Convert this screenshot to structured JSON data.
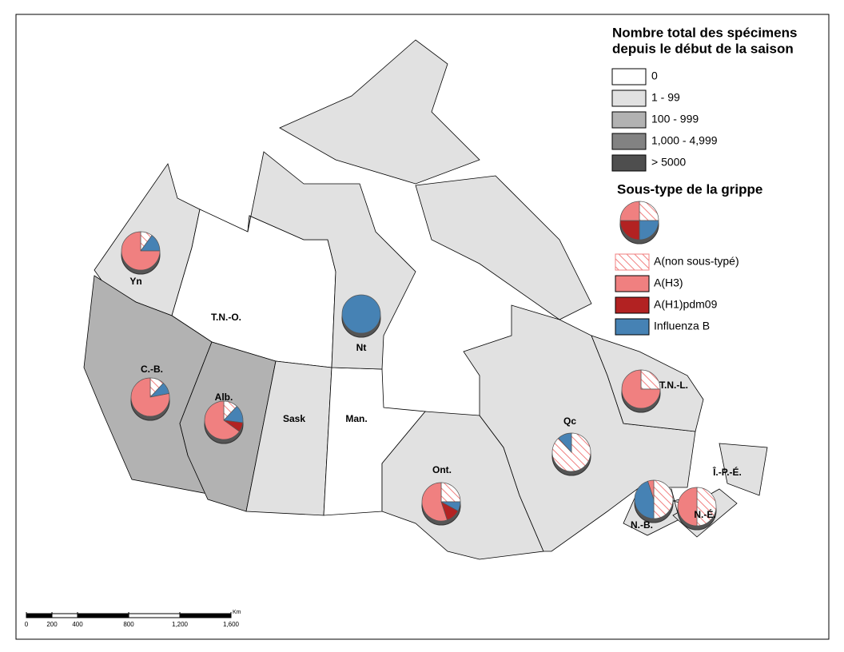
{
  "legend": {
    "title": [
      "Nombre total des spécimens",
      "depuis le début de la saison"
    ],
    "classes": [
      {
        "label": "0",
        "color": "#ffffff"
      },
      {
        "label": "1 - 99",
        "color": "#e1e1e1"
      },
      {
        "label": "100 - 999",
        "color": "#b2b2b2"
      },
      {
        "label": "1,000 - 4,999",
        "color": "#828282"
      },
      {
        "label": "> 5000",
        "color": "#4e4e4e"
      }
    ]
  },
  "subtype_legend": {
    "title": "Sous-type de la grippe",
    "items": [
      {
        "label": "A(non sous-typé)",
        "color": "#f08080",
        "hatch": true
      },
      {
        "label": "A(H3)",
        "color": "#f08080",
        "hatch": false
      },
      {
        "label": "A(H1)pdm09",
        "color": "#b22222",
        "hatch": false
      },
      {
        "label": "Influenza B",
        "color": "#4682b4",
        "hatch": false
      }
    ]
  },
  "regions": [
    {
      "label": "Yn",
      "class": 1,
      "pie": [
        10,
        75,
        0,
        15
      ]
    },
    {
      "label": "T.N.-O.",
      "class": 0
    },
    {
      "label": "C.-B.",
      "class": 2,
      "pie": [
        12,
        78,
        0,
        10
      ]
    },
    {
      "label": "Alb.",
      "class": 2,
      "pie": [
        12,
        65,
        8,
        15
      ]
    },
    {
      "label": "Sask",
      "class": 1
    },
    {
      "label": "Man.",
      "class": 0
    },
    {
      "label": "Nt",
      "class": 1,
      "pie": [
        0,
        0,
        0,
        100
      ]
    },
    {
      "label": "Ont.",
      "class": 1,
      "pie": [
        25,
        55,
        12,
        8
      ]
    },
    {
      "label": "Qc",
      "class": 1,
      "pie": [
        88,
        0,
        0,
        12
      ]
    },
    {
      "label": "T.N.-L.",
      "class": 1,
      "pie": [
        25,
        75,
        0,
        0
      ]
    },
    {
      "label": "N.-B.",
      "class": 1,
      "pie": [
        50,
        5,
        0,
        45
      ]
    },
    {
      "label": "N.-É.",
      "class": 1,
      "pie": [
        50,
        50,
        0,
        0
      ]
    },
    {
      "label": "Î.-P.-É.",
      "class": 1
    }
  ],
  "scale": {
    "unit": "Km",
    "ticks": [
      0,
      200,
      400,
      800,
      {
        "value": 1200,
        "label": "1,200"
      },
      {
        "value": 1600,
        "label": "1,600"
      }
    ]
  }
}
